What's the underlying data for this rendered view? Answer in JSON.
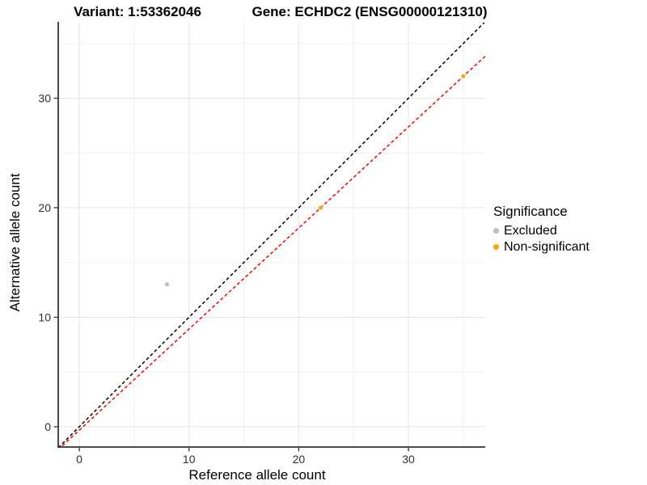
{
  "titles": {
    "left": "Variant: 1:53362046",
    "right": "Gene: ECHDC2 (ENSG00000121310)"
  },
  "chart_data": {
    "type": "scatter",
    "xlabel": "Reference allele count",
    "ylabel": "Alternative allele count",
    "xlim": [
      -1.92,
      37.0
    ],
    "ylim": [
      -1.85,
      36.9
    ],
    "xticks": [
      0,
      10,
      20,
      30
    ],
    "yticks": [
      0,
      10,
      20,
      30
    ],
    "xminor": [
      5,
      15,
      25,
      35
    ],
    "yminor": [
      5,
      15,
      25,
      35
    ],
    "grid": true,
    "series": [
      {
        "name": "Excluded",
        "color": "#bdbdbd",
        "points": [
          [
            8,
            13
          ]
        ]
      },
      {
        "name": "Non-significant",
        "color": "#ffa500",
        "points": [
          [
            22,
            20
          ],
          [
            35,
            32
          ]
        ]
      }
    ],
    "ref_lines": [
      {
        "name": "identity-line",
        "color": "#000000",
        "style": "dashed",
        "slope": 1,
        "intercept": 0
      },
      {
        "name": "fit-line",
        "color": "#ff0000",
        "style": "dashed",
        "slope": 0.923,
        "intercept": -0.31
      }
    ],
    "legend": {
      "position": "right",
      "title": "Significance",
      "items": [
        {
          "label": "Excluded",
          "color": "#bdbdbd"
        },
        {
          "label": "Non-significant",
          "color": "#ffa500"
        }
      ]
    }
  },
  "colors": {
    "background": "#ffffff",
    "axis_line": "#333333",
    "grid_major": "#e4e4e4",
    "grid_minor": "#f1f1f1",
    "tick_mark": "#333333",
    "tick_text": "#303030",
    "title_text": "#000000"
  }
}
